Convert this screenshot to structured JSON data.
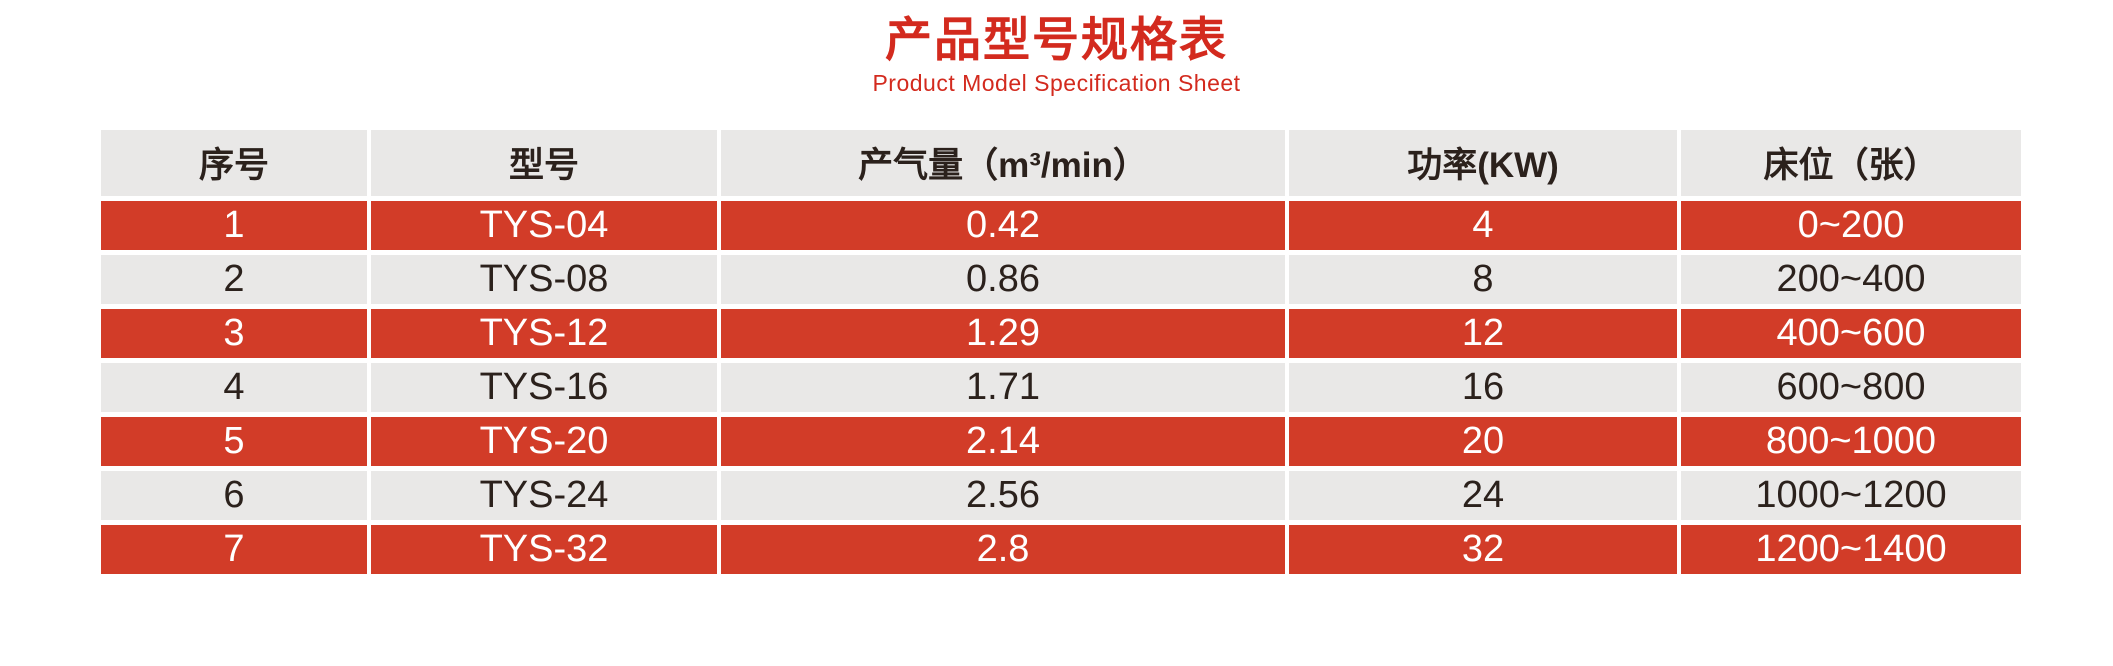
{
  "title": {
    "zh": "产品型号规格表",
    "en": "Product Model Specification Sheet"
  },
  "colors": {
    "title_red": "#d32a1e",
    "row_red": "#d23c28",
    "row_gray": "#e9e8e7",
    "dark_text": "#2b211c",
    "light_text": "#ffffff"
  },
  "table": {
    "columns": [
      "序号",
      "型号",
      "产气量（m³/min）",
      "功率(KW)",
      "床位（张）"
    ],
    "rows": [
      [
        "1",
        "TYS-04",
        "0.42",
        "4",
        "0~200"
      ],
      [
        "2",
        "TYS-08",
        "0.86",
        "8",
        "200~400"
      ],
      [
        "3",
        "TYS-12",
        "1.29",
        "12",
        "400~600"
      ],
      [
        "4",
        "TYS-16",
        "1.71",
        "16",
        "600~800"
      ],
      [
        "5",
        "TYS-20",
        "2.14",
        "20",
        "800~1000"
      ],
      [
        "6",
        "TYS-24",
        "2.56",
        "24",
        "1000~1200"
      ],
      [
        "7",
        "TYS-32",
        "2.8",
        "32",
        "1200~1400"
      ]
    ]
  }
}
